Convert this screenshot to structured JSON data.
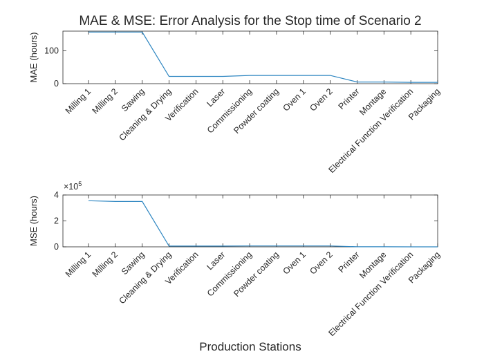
{
  "chart_data": [
    {
      "type": "line",
      "title": "MAE & MSE: Error Analysis for the Stop time of Scenario 2",
      "ylabel": "MAE (hours)",
      "xlabel": "",
      "exponent_label": "",
      "categories": [
        "Milling 1",
        "Milling 2",
        "Sawing",
        "Cleaning & Drying",
        "Verification",
        "Laser",
        "Commissioning",
        "Powder coating",
        "Oven 1",
        "Oven 2",
        "Printer",
        "Montage",
        "Electrical Function Verification",
        "Packaging"
      ],
      "yticks": [
        "0",
        "100"
      ],
      "ytick_values": [
        0,
        100
      ],
      "ylim": [
        0,
        160
      ],
      "series": [
        {
          "values": [
            157,
            157,
            157,
            22,
            22,
            22,
            25,
            25,
            25,
            25,
            5,
            5,
            4,
            4
          ]
        }
      ],
      "color": "#2e86c1"
    },
    {
      "type": "line",
      "title": "",
      "ylabel": "MSE (hours)",
      "xlabel": "Production Stations",
      "exponent_label": "×10",
      "exponent_power": "5",
      "categories": [
        "Milling 1",
        "Milling 2",
        "Sawing",
        "Cleaning & Drying",
        "Verification",
        "Laser",
        "Commissioning",
        "Powder coating",
        "Oven 1",
        "Oven 2",
        "Printer",
        "Montage",
        "Electrical Function Verification",
        "Packaging"
      ],
      "yticks": [
        "0",
        "2",
        "4"
      ],
      "ytick_values": [
        0,
        200000,
        400000
      ],
      "ylim": [
        0,
        400000
      ],
      "series": [
        {
          "values": [
            356000,
            350000,
            350000,
            6000,
            6000,
            6000,
            7000,
            7000,
            7000,
            7000,
            300,
            300,
            200,
            200
          ]
        }
      ],
      "color": "#2e86c1"
    }
  ]
}
